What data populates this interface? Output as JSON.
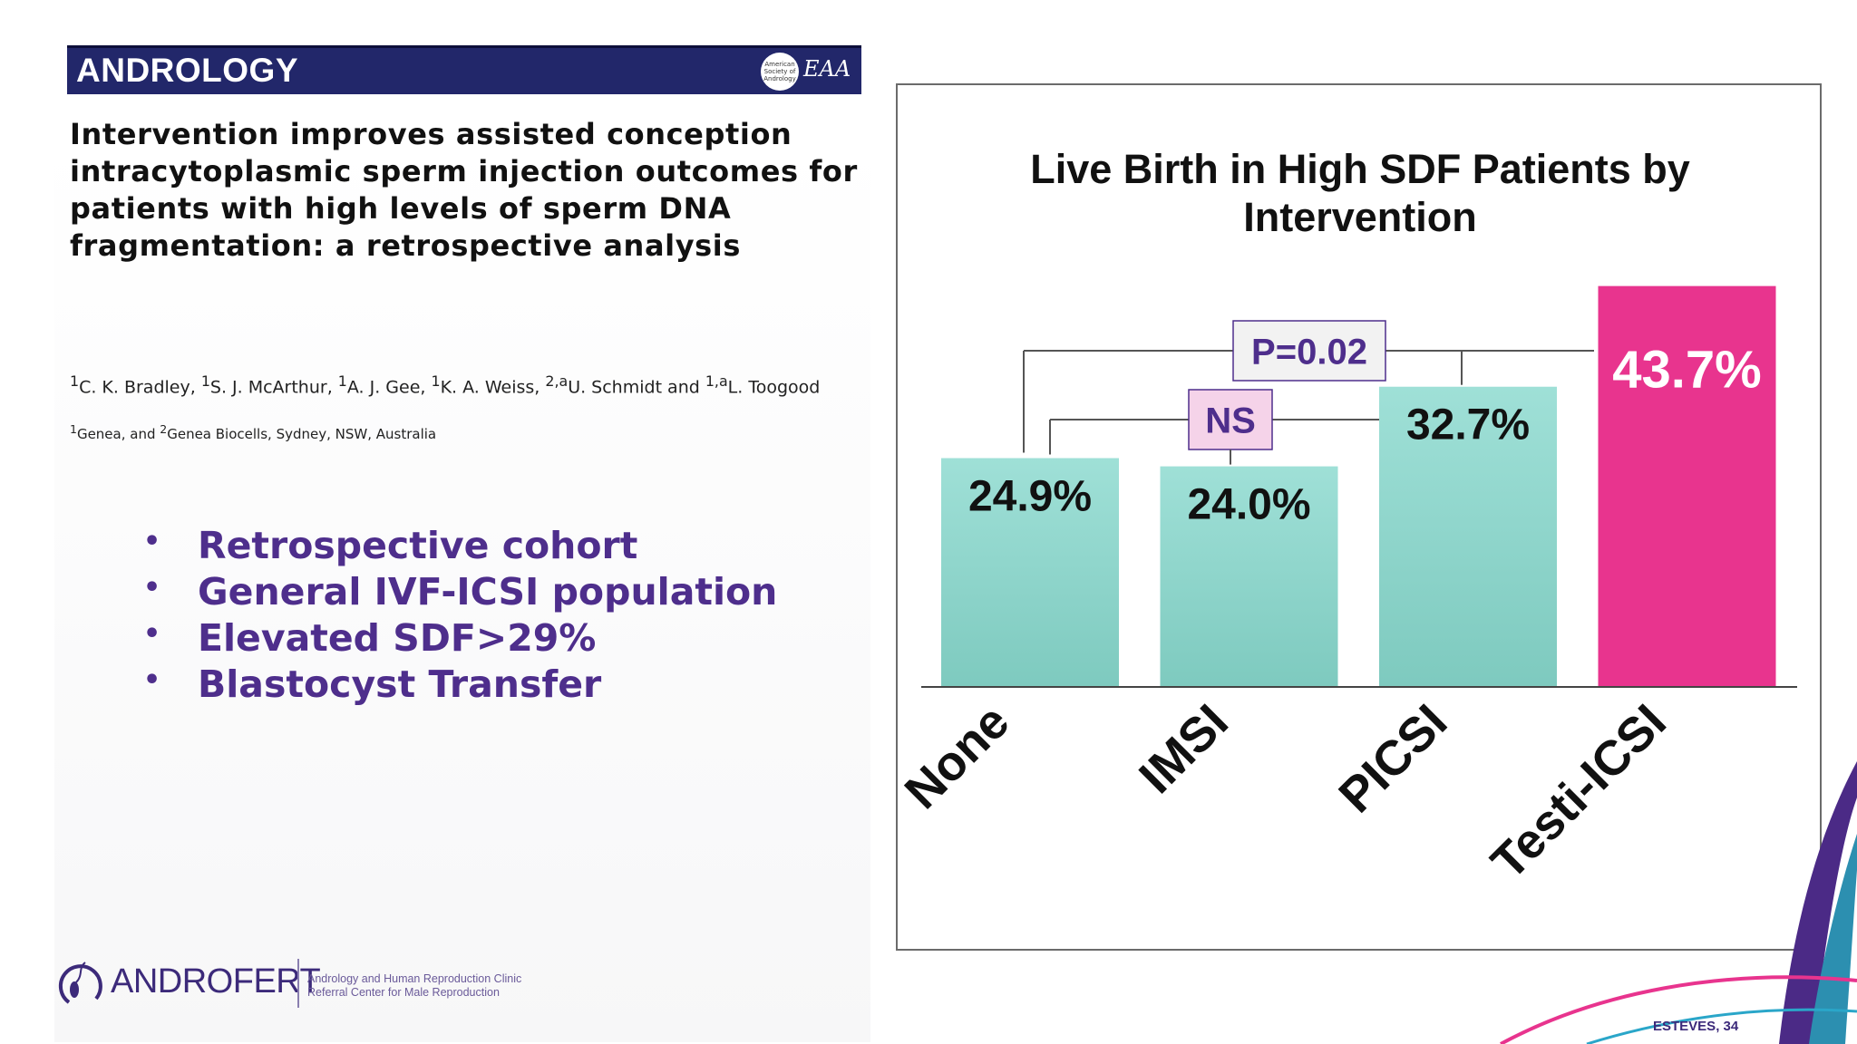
{
  "slide": {
    "banner_title": "ANDROLOGY",
    "seal_text": "American Society of Andrology",
    "seal2_text": "EAA",
    "paper_title": "Intervention improves assisted conception intracytoplasmic sperm injection outcomes for patients with high levels of sperm DNA fragmentation: a retrospective analysis",
    "authors_html": "<sup>1</sup>C. K. Bradley, <sup>1</sup>S. J. McArthur, <sup>1</sup>A. J. Gee, <sup>1</sup>K. A. Weiss, <sup>2,a</sup>U. Schmidt and <sup>1,a</sup>L. Toogood",
    "affiliation_html": "<sup>1</sup>Genea, and <sup>2</sup>Genea Biocells, Sydney, NSW, Australia",
    "bullets": [
      "Retrospective cohort",
      "General IVF-ICSI population",
      "Elevated SDF>29%",
      "Blastocyst Transfer"
    ],
    "brand_name": "ANDROFERT",
    "brand_tagline_1": "Andrology and Human Reproduction Clinic",
    "brand_tagline_2": "Referral Center for Male Reproduction",
    "footer": "ESTEVES, 34"
  },
  "chart_data": {
    "type": "bar",
    "title": "Live Birth in High SDF Patients by Intervention",
    "categories": [
      "None",
      "IMSI",
      "PICSI",
      "Testi-ICSI"
    ],
    "values": [
      24.9,
      24.0,
      32.7,
      43.7
    ],
    "value_labels": [
      "24.9%",
      "24.0%",
      "32.7%",
      "43.7%"
    ],
    "bar_colors": [
      "#8ed9cf",
      "#8ed9cf",
      "#8ed9cf",
      "#e8348e"
    ],
    "label_colors": [
      "#111111",
      "#111111",
      "#111111",
      "#ffffff"
    ],
    "ylim": [
      0,
      45
    ],
    "comparisons": [
      {
        "label": "P=0.02",
        "from": "None",
        "to": "Testi-ICSI",
        "label_bg": "#f2f2f2",
        "label_color": "#4e2e8c"
      },
      {
        "label": "NS",
        "from": "None",
        "to": "PICSI",
        "label_bg": "#f5d3e9",
        "label_color": "#4e2e8c"
      }
    ],
    "grid": false,
    "legend": "none"
  }
}
